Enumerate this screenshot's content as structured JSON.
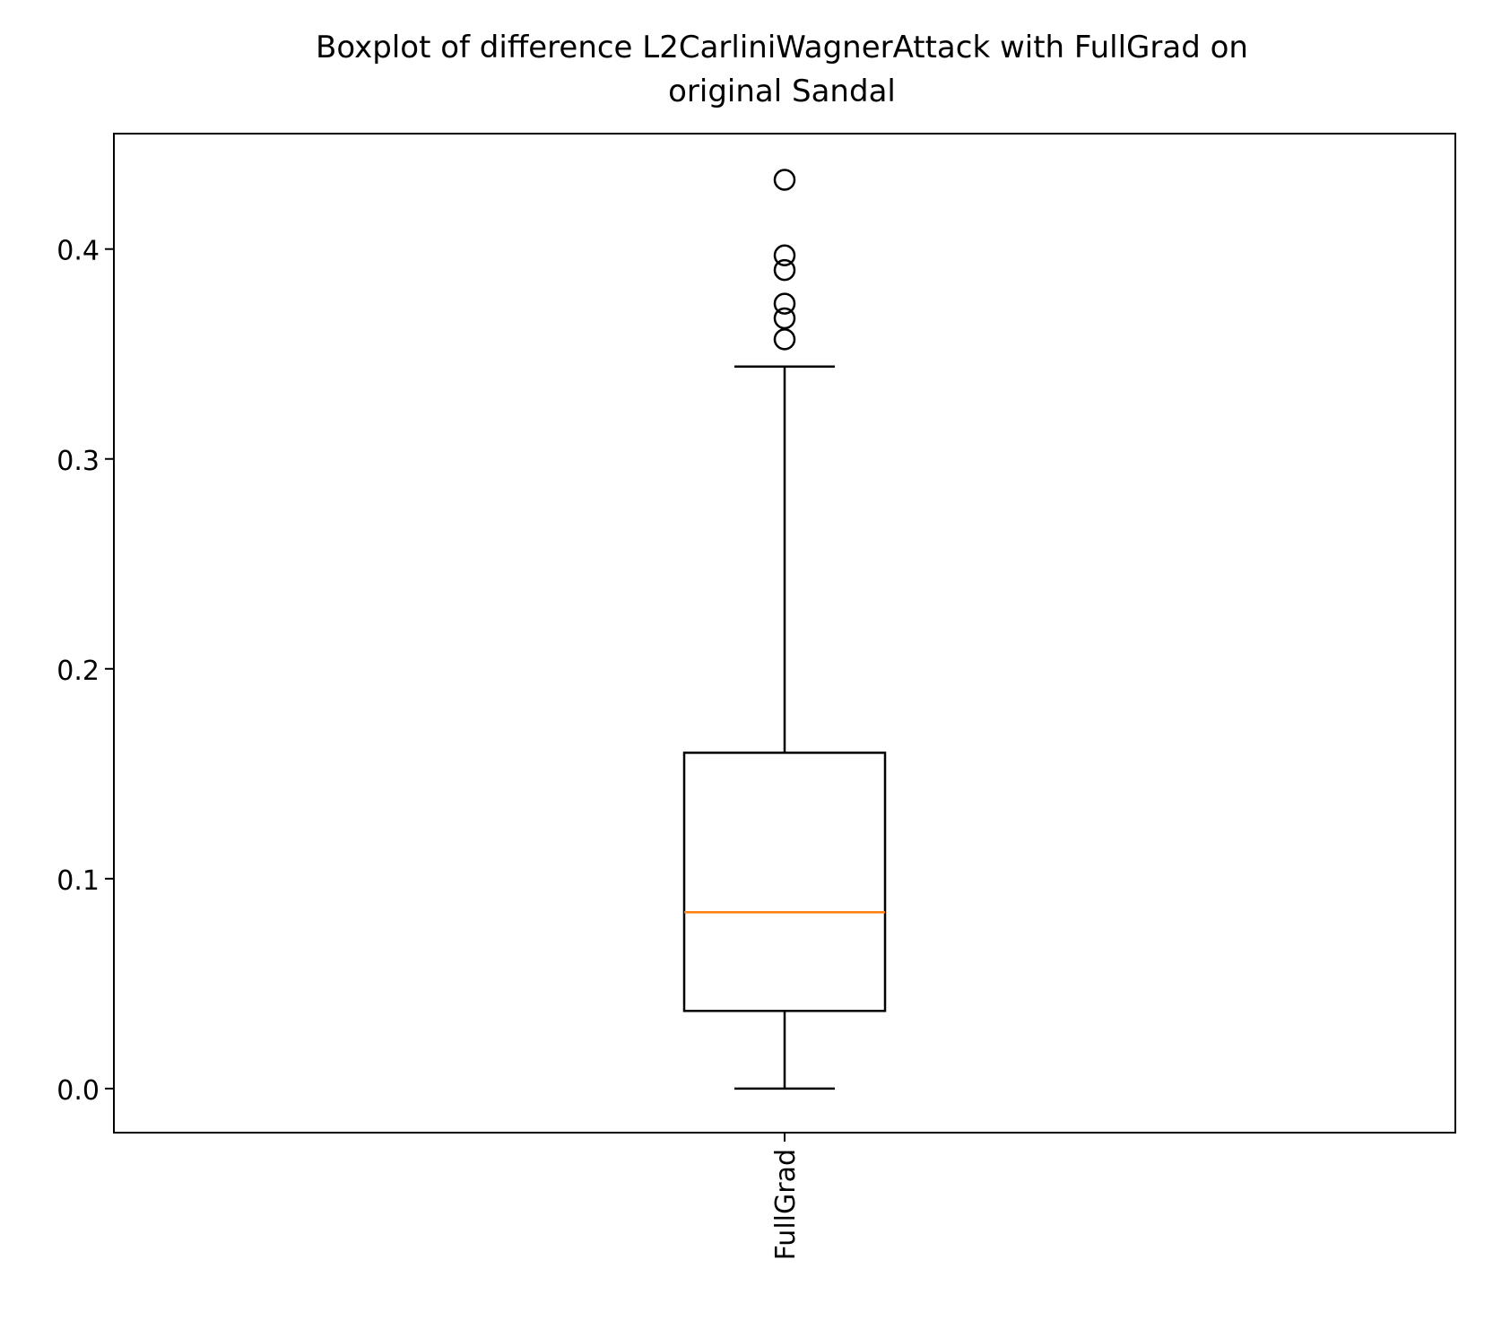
{
  "chart_data": {
    "type": "boxplot",
    "title": "Boxplot of difference L2CarliniWagnerAttack with FullGrad on original Sandal",
    "title_lines": [
      "Boxplot of difference L2CarliniWagnerAttack with FullGrad on",
      "original Sandal"
    ],
    "xlabel": "",
    "ylabel": "",
    "ylim": [
      -0.021,
      0.455
    ],
    "yticks": [
      0.0,
      0.1,
      0.2,
      0.3,
      0.4
    ],
    "ytick_labels": [
      "0.0",
      "0.1",
      "0.2",
      "0.3",
      "0.4"
    ],
    "grid": false,
    "legend": "none",
    "categories": [
      "FullGrad"
    ],
    "xtick_rotation": "vertical",
    "boxes": [
      {
        "label": "FullGrad",
        "whisker_low": 0.0,
        "q1": 0.037,
        "median": 0.084,
        "q3": 0.16,
        "whisker_high": 0.344,
        "outliers": [
          0.357,
          0.367,
          0.374,
          0.39,
          0.397,
          0.433
        ]
      }
    ],
    "colors": {
      "box": "#000000",
      "median": "#ff7f0e",
      "outlier": "#000000",
      "axes": "#000000"
    }
  }
}
